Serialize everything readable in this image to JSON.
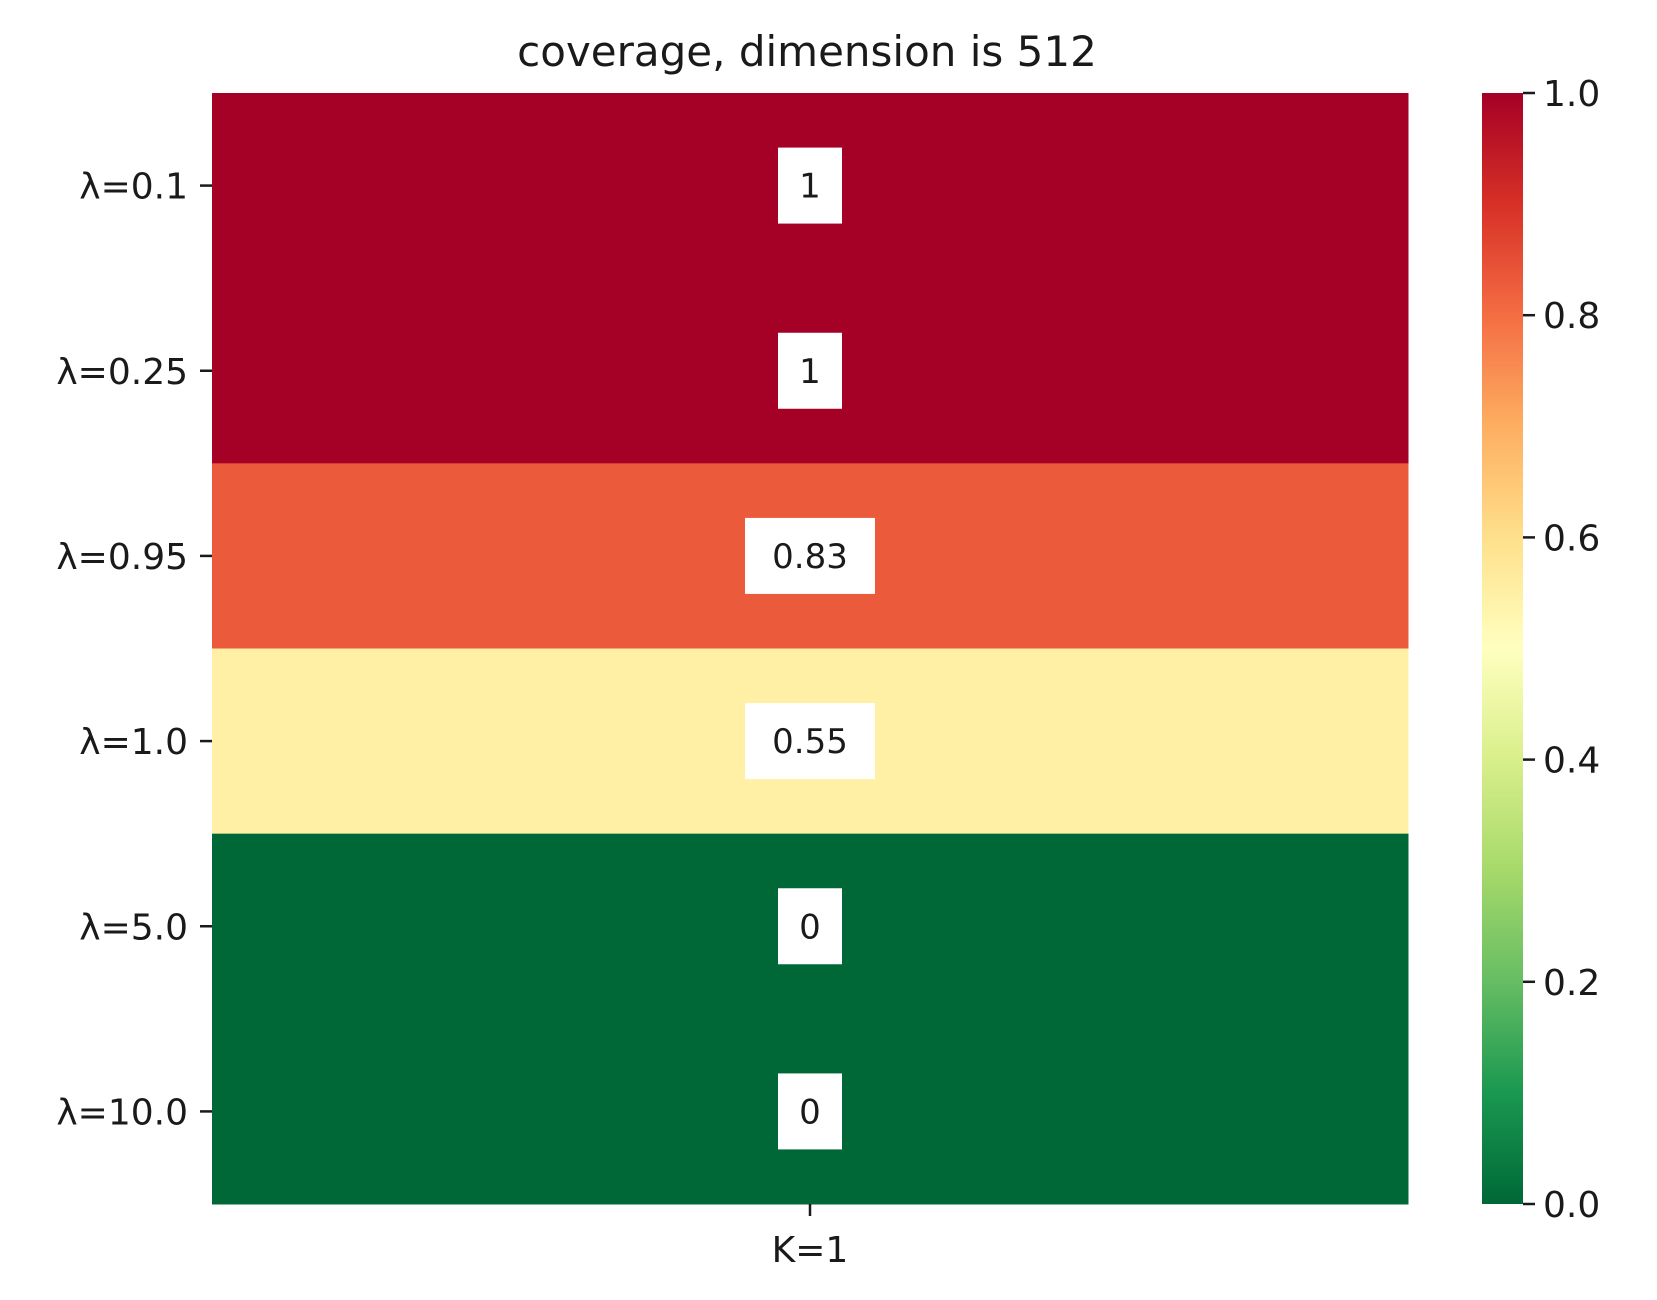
{
  "chart_data": {
    "type": "heatmap",
    "title": "coverage, dimension is 512",
    "x_categories": [
      "K=1"
    ],
    "y_categories": [
      "λ=0.1",
      "λ=0.25",
      "λ=0.95",
      "λ=1.0",
      "λ=5.0",
      "λ=10.0"
    ],
    "values": [
      [
        1.0
      ],
      [
        1.0
      ],
      [
        0.83
      ],
      [
        0.55
      ],
      [
        0.0
      ],
      [
        0.0
      ]
    ],
    "annotations": [
      [
        "1"
      ],
      [
        "1"
      ],
      [
        "0.83"
      ],
      [
        "0.55"
      ],
      [
        "0"
      ],
      [
        "0"
      ]
    ],
    "colormap": "RdYlGn_r",
    "colormap_stops": [
      "#006837",
      "#1a9850",
      "#66bd63",
      "#a6d96a",
      "#d9ef8b",
      "#ffffbf",
      "#fee08b",
      "#fdae61",
      "#f46d43",
      "#d73027",
      "#a50026"
    ],
    "vmin": 0.0,
    "vmax": 1.0,
    "colorbar_ticks": [
      "0.0",
      "0.2",
      "0.4",
      "0.6",
      "0.8",
      "1.0"
    ],
    "colorbar": "right",
    "grid": false
  }
}
